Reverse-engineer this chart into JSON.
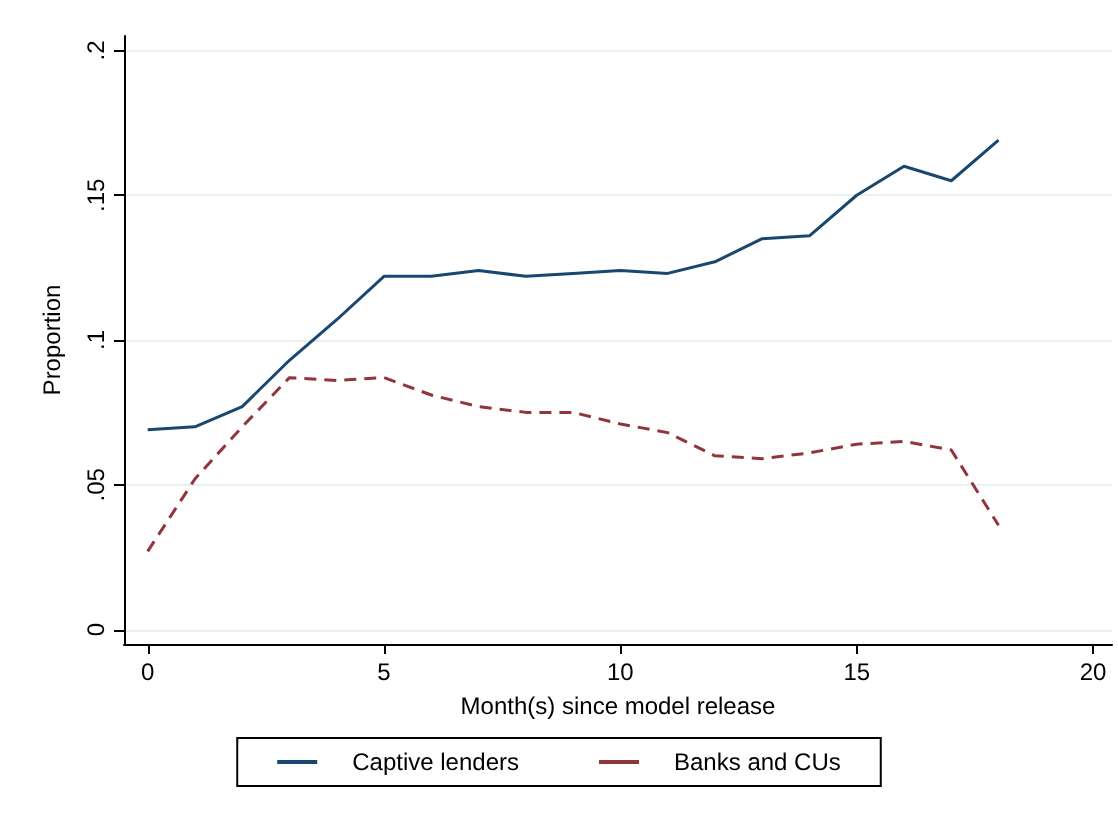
{
  "chart_data": {
    "type": "line",
    "xlabel": "Month(s) since model release",
    "ylabel": "Proportion",
    "x": [
      0,
      1,
      2,
      3,
      4,
      5,
      6,
      7,
      8,
      9,
      10,
      11,
      12,
      13,
      14,
      15,
      16,
      17,
      18
    ],
    "series": [
      {
        "name": "Captive lenders",
        "color": "#1a476f",
        "line_style": "solid",
        "values": [
          0.069,
          0.07,
          0.077,
          0.093,
          0.107,
          0.122,
          0.122,
          0.124,
          0.122,
          0.123,
          0.124,
          0.123,
          0.127,
          0.135,
          0.136,
          0.15,
          0.16,
          0.155,
          0.169
        ]
      },
      {
        "name": "Banks and CUs",
        "color": "#90353b",
        "line_style": "dashed",
        "values": [
          0.027,
          0.052,
          0.07,
          0.087,
          0.086,
          0.087,
          0.081,
          0.077,
          0.075,
          0.075,
          0.071,
          0.068,
          0.06,
          0.059,
          0.061,
          0.064,
          0.065,
          0.062,
          0.036
        ]
      }
    ],
    "xlim": [
      -0.5,
      20.4
    ],
    "xticks": [
      0,
      5,
      10,
      15,
      20
    ],
    "ylim": [
      -0.005,
      0.205
    ],
    "yticks": [
      {
        "value": 0,
        "label": "0"
      },
      {
        "value": 0.05,
        "label": ".05"
      },
      {
        "value": 0.1,
        "label": ".1"
      },
      {
        "value": 0.15,
        "label": ".15"
      },
      {
        "value": 0.2,
        "label": ".2"
      }
    ],
    "grid": "y",
    "legend": "bottom",
    "marker": "none"
  }
}
